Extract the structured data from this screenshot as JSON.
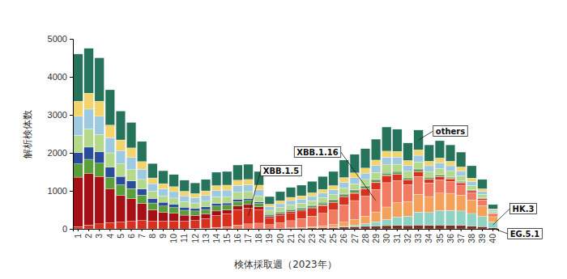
{
  "chart_data": {
    "type": "bar",
    "stacked": true,
    "x_label": "検体採取週（2023年）",
    "y_label": "解析検体数",
    "categories": [
      "1",
      "2",
      "3",
      "4",
      "5",
      "6",
      "7",
      "8",
      "9",
      "10",
      "11",
      "12",
      "13",
      "14",
      "15",
      "16",
      "17",
      "18",
      "19",
      "20",
      "21",
      "22",
      "23",
      "24",
      "25",
      "26",
      "27",
      "28",
      "29",
      "30",
      "31",
      "32",
      "33",
      "34",
      "35",
      "36",
      "37",
      "38",
      "39",
      "40"
    ],
    "ylim": [
      0,
      5000
    ],
    "yticks": [
      0,
      1000,
      2000,
      3000,
      4000,
      5000
    ],
    "series": [
      {
        "name": "EG.5.1",
        "color": "#7a2e1e",
        "values": [
          0,
          0,
          0,
          0,
          0,
          0,
          0,
          0,
          0,
          0,
          0,
          0,
          0,
          0,
          0,
          0,
          0,
          0,
          0,
          10,
          15,
          20,
          25,
          30,
          35,
          45,
          55,
          65,
          75,
          85,
          90,
          85,
          100,
          90,
          100,
          95,
          90,
          75,
          60,
          30
        ]
      },
      {
        "name": "HK.3",
        "color": "#8fd3c4",
        "values": [
          0,
          0,
          0,
          0,
          0,
          0,
          0,
          0,
          0,
          0,
          0,
          0,
          0,
          0,
          0,
          0,
          0,
          0,
          0,
          0,
          0,
          0,
          0,
          0,
          10,
          20,
          40,
          70,
          110,
          160,
          220,
          250,
          340,
          340,
          380,
          390,
          380,
          330,
          270,
          150
        ]
      },
      {
        "color": "#f4a25b",
        "values": [
          0,
          0,
          0,
          0,
          0,
          0,
          0,
          0,
          0,
          0,
          0,
          0,
          0,
          0,
          0,
          0,
          0,
          0,
          0,
          0,
          10,
          20,
          30,
          50,
          70,
          110,
          150,
          200,
          260,
          330,
          380,
          380,
          470,
          420,
          460,
          450,
          420,
          350,
          280,
          140
        ]
      },
      {
        "name": "XBB.1.16",
        "color": "#f07a62",
        "values": [
          0,
          0,
          0,
          0,
          0,
          0,
          0,
          0,
          0,
          0,
          0,
          10,
          20,
          40,
          60,
          100,
          130,
          150,
          110,
          150,
          190,
          230,
          280,
          330,
          380,
          460,
          500,
          530,
          590,
          640,
          580,
          450,
          470,
          360,
          350,
          310,
          260,
          200,
          150,
          70
        ]
      },
      {
        "name": "XBB.1.5",
        "color": "#d7301f",
        "values": [
          60,
          100,
          130,
          160,
          180,
          200,
          220,
          200,
          200,
          210,
          200,
          210,
          250,
          310,
          340,
          400,
          420,
          360,
          180,
          200,
          210,
          200,
          200,
          200,
          190,
          200,
          190,
          180,
          180,
          180,
          160,
          120,
          120,
          90,
          80,
          70,
          60,
          45,
          35,
          15
        ]
      },
      {
        "color": "#a50f15",
        "values": [
          1300,
          1350,
          1250,
          900,
          700,
          600,
          450,
          300,
          240,
          200,
          160,
          130,
          120,
          120,
          100,
          100,
          90,
          70,
          40,
          30,
          30,
          25,
          20,
          20,
          15,
          15,
          15,
          15,
          15,
          15,
          10,
          10,
          10,
          10,
          10,
          10,
          10,
          5,
          5,
          0
        ]
      },
      {
        "color": "#5a9e3a",
        "values": [
          350,
          380,
          350,
          300,
          280,
          260,
          220,
          180,
          160,
          150,
          130,
          120,
          120,
          130,
          120,
          120,
          110,
          90,
          50,
          50,
          50,
          50,
          50,
          50,
          50,
          55,
          55,
          55,
          55,
          55,
          50,
          45,
          50,
          40,
          40,
          35,
          30,
          25,
          20,
          10
        ]
      },
      {
        "color": "#2b4c9b",
        "values": [
          300,
          320,
          300,
          260,
          220,
          200,
          160,
          120,
          100,
          90,
          80,
          70,
          70,
          70,
          60,
          60,
          50,
          40,
          20,
          20,
          20,
          20,
          20,
          20,
          20,
          20,
          20,
          20,
          20,
          20,
          20,
          15,
          15,
          10,
          10,
          10,
          10,
          5,
          5,
          0
        ]
      },
      {
        "color": "#b5d98a",
        "values": [
          450,
          480,
          450,
          380,
          330,
          300,
          250,
          190,
          170,
          160,
          150,
          140,
          150,
          170,
          170,
          180,
          180,
          160,
          90,
          100,
          110,
          110,
          115,
          120,
          130,
          150,
          160,
          165,
          180,
          200,
          190,
          160,
          180,
          150,
          155,
          145,
          130,
          105,
          80,
          40
        ]
      },
      {
        "color": "#9ecae1",
        "values": [
          500,
          520,
          480,
          400,
          350,
          320,
          270,
          200,
          180,
          170,
          150,
          140,
          150,
          170,
          170,
          180,
          180,
          160,
          90,
          100,
          110,
          110,
          115,
          120,
          130,
          150,
          160,
          165,
          180,
          200,
          190,
          160,
          180,
          150,
          155,
          145,
          130,
          105,
          80,
          40
        ]
      },
      {
        "color": "#f3d36b",
        "values": [
          400,
          420,
          400,
          330,
          280,
          250,
          200,
          150,
          140,
          130,
          120,
          110,
          120,
          130,
          130,
          140,
          140,
          120,
          70,
          80,
          85,
          85,
          95,
          100,
          110,
          125,
          130,
          135,
          145,
          160,
          150,
          125,
          145,
          120,
          125,
          120,
          110,
          90,
          70,
          30
        ]
      },
      {
        "name": "others",
        "color": "#24735a",
        "values": [
          1240,
          1180,
          1140,
          930,
          760,
          670,
          530,
          380,
          340,
          320,
          290,
          280,
          300,
          350,
          360,
          400,
          400,
          360,
          200,
          240,
          260,
          280,
          300,
          340,
          370,
          460,
          485,
          510,
          550,
          635,
          580,
          460,
          520,
          430,
          455,
          430,
          390,
          325,
          245,
          115
        ]
      }
    ]
  }
}
